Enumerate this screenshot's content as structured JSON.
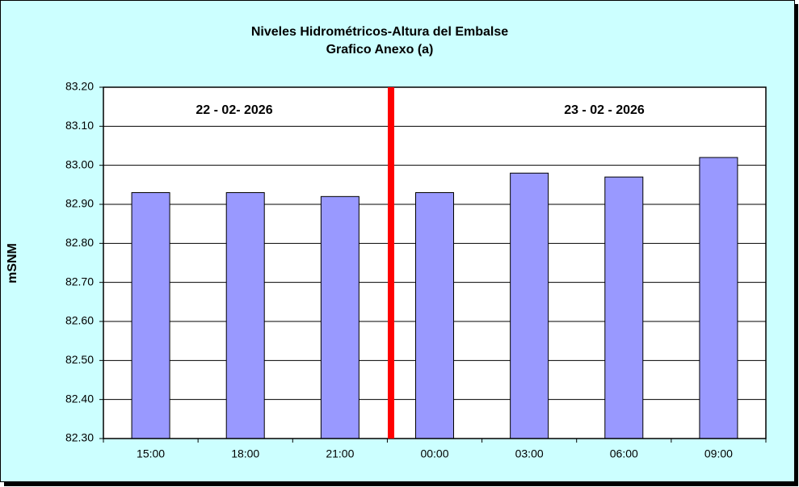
{
  "chart_data": {
    "type": "bar",
    "title": "Niveles Hidrométricos-Altura del Embalse",
    "subtitle": "Grafico Anexo (a)",
    "y_label": "mSNM",
    "annotations": [
      "22 - 02- 2026",
      "23 - 02 - 2026"
    ],
    "categories": [
      "15:00",
      "18:00",
      "21:00",
      "00:00",
      "03:00",
      "06:00",
      "09:00"
    ],
    "values": [
      82.93,
      82.93,
      82.92,
      82.93,
      82.98,
      82.97,
      83.02
    ],
    "color": "#9999ff",
    "ylim": [
      82.3,
      83.2
    ],
    "yticks": [
      {
        "value": 82.3,
        "label": "82.30"
      },
      {
        "value": 82.4,
        "label": "82.40"
      },
      {
        "value": 82.5,
        "label": "82.50"
      },
      {
        "value": 82.6,
        "label": "82.60"
      },
      {
        "value": 82.7,
        "label": "82.70"
      },
      {
        "value": 82.8,
        "label": "82.80"
      },
      {
        "value": 82.9,
        "label": "82.90"
      },
      {
        "value": 83.0,
        "label": "83.00"
      },
      {
        "value": 83.1,
        "label": "83.10"
      },
      {
        "value": 83.2,
        "label": "83.20"
      }
    ],
    "grid": true
  }
}
